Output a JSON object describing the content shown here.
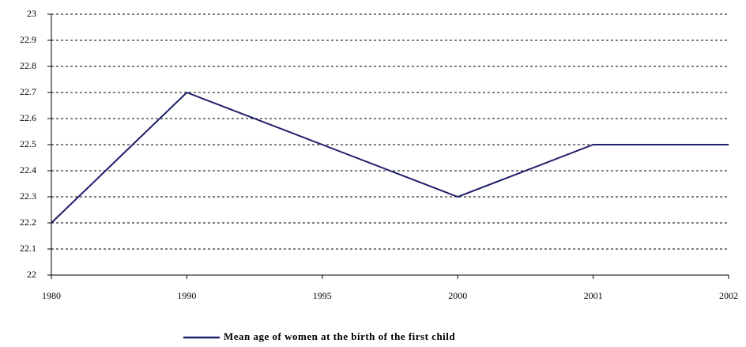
{
  "chart_data": {
    "type": "line",
    "categories": [
      "1980",
      "1990",
      "1995",
      "2000",
      "2001",
      "2002"
    ],
    "series": [
      {
        "name": "Mean age of women at the birth of the first child",
        "color": "#1f1f6b",
        "values": [
          22.2,
          22.7,
          22.5,
          22.3,
          22.5,
          22.5
        ]
      }
    ],
    "ylim": [
      22,
      23
    ],
    "yticks": [
      22,
      22.1,
      22.2,
      22.3,
      22.4,
      22.5,
      22.6,
      22.7,
      22.8,
      22.9,
      23
    ],
    "grid": true,
    "legend": "bottom"
  }
}
